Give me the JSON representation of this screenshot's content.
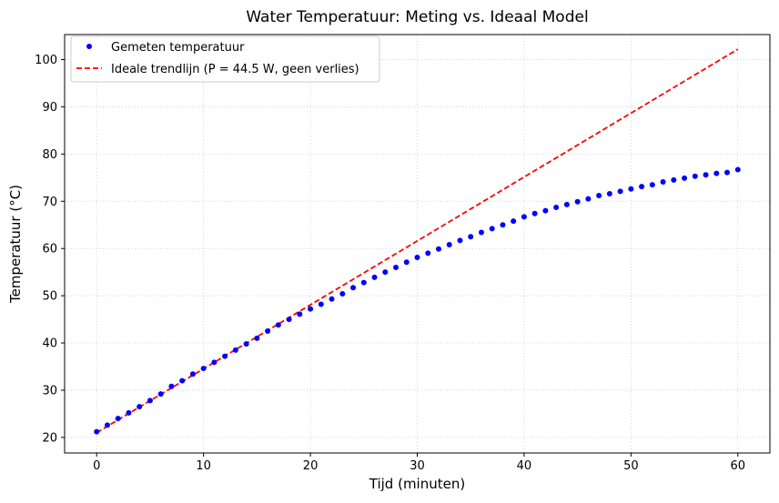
{
  "chart_data": {
    "type": "line",
    "title": "Water Temperatuur: Meting vs. Ideaal Model",
    "xlabel": "Tijd (minuten)",
    "ylabel": "Temperatuur (°C)",
    "xlim": [
      -3,
      63
    ],
    "ylim": [
      16.7,
      105.3
    ],
    "xticks": [
      0,
      10,
      20,
      30,
      40,
      50,
      60
    ],
    "yticks": [
      20,
      30,
      40,
      50,
      60,
      70,
      80,
      90,
      100
    ],
    "grid": true,
    "legend_position": "top-left",
    "series": [
      {
        "name": "Gemeten temperatuur",
        "style": "dots",
        "color": "#0000ff",
        "x": [
          0,
          1,
          2,
          3,
          4,
          5,
          6,
          7,
          8,
          9,
          10,
          11,
          12,
          13,
          14,
          15,
          16,
          17,
          18,
          19,
          20,
          21,
          22,
          23,
          24,
          25,
          26,
          27,
          28,
          29,
          30,
          31,
          32,
          33,
          34,
          35,
          36,
          37,
          38,
          39,
          40,
          41,
          42,
          43,
          44,
          45,
          46,
          47,
          48,
          49,
          50,
          51,
          52,
          53,
          54,
          55,
          56,
          57,
          58,
          59,
          60
        ],
        "y": [
          21.2,
          22.6,
          24.0,
          25.2,
          26.5,
          27.8,
          29.2,
          30.8,
          32.0,
          33.4,
          34.6,
          35.9,
          37.2,
          38.5,
          39.8,
          41.0,
          42.5,
          43.8,
          45.0,
          46.1,
          47.2,
          48.2,
          49.3,
          50.4,
          51.7,
          52.8,
          53.9,
          55.0,
          56.0,
          57.1,
          58.1,
          59.0,
          59.9,
          60.8,
          61.7,
          62.5,
          63.4,
          64.2,
          65.0,
          65.8,
          66.7,
          67.4,
          68.0,
          68.7,
          69.3,
          69.9,
          70.5,
          71.2,
          71.6,
          72.1,
          72.6,
          73.1,
          73.5,
          74.1,
          74.5,
          74.9,
          75.3,
          75.6,
          75.9,
          76.1,
          76.7
        ]
      },
      {
        "name": "Ideale trendlijn (P = 44.5 W, geen verlies)",
        "style": "dashed",
        "color": "#ff0000",
        "x": [
          0,
          60
        ],
        "y": [
          21.0,
          102.2
        ]
      }
    ]
  }
}
